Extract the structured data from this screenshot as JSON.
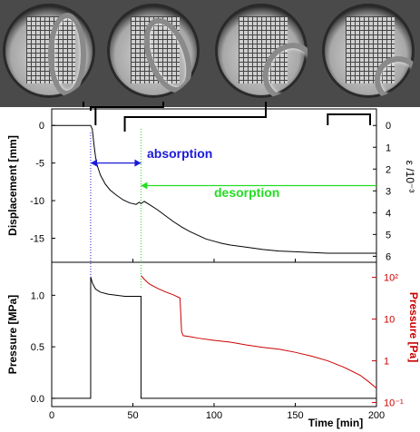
{
  "chart_data": [
    {
      "type": "line",
      "panel": "top",
      "ylabel": "Displacement [mm]",
      "ylabel2": "ε /10⁻³",
      "ylim": [
        -18.2,
        2.2
      ],
      "yticks": [
        0,
        -5,
        -10,
        -15
      ],
      "y2ticks": [
        "0",
        "1",
        "2",
        "3",
        "4",
        "5",
        "6"
      ],
      "xlim": [
        0,
        200
      ],
      "series": [
        {
          "color": "#000000",
          "x": [
            0,
            24,
            25,
            26,
            27,
            28,
            30,
            33,
            36,
            40,
            44,
            48,
            52,
            54,
            55,
            57,
            60,
            65,
            70,
            75,
            80,
            85,
            90,
            95,
            100,
            105,
            110,
            120,
            130,
            140,
            150,
            160,
            170,
            180,
            190,
            200
          ],
          "y": [
            0,
            0,
            -0.5,
            -2.5,
            -4.2,
            -5.3,
            -6.6,
            -7.8,
            -8.6,
            -9.3,
            -9.9,
            -10.3,
            -10.5,
            -10.2,
            -10.4,
            -10.1,
            -10.5,
            -11.2,
            -12.0,
            -12.8,
            -13.5,
            -14.1,
            -14.6,
            -15.1,
            -15.4,
            -15.7,
            -15.9,
            -16.2,
            -16.5,
            -16.7,
            -16.8,
            -16.9,
            -17.0,
            -17.0,
            -17.0,
            -17.0
          ]
        }
      ],
      "annotations": [
        {
          "text": "absorption",
          "color": "#1a1ad8",
          "x_from": 24,
          "x_to": 55,
          "y": -5.0
        },
        {
          "text": "desorption",
          "color": "#22dd22",
          "x_from": 200,
          "x_to": 55,
          "y": -8.0
        }
      ]
    },
    {
      "type": "line",
      "panel": "bottom",
      "xlabel": "Time [min]",
      "ylabel": "Pressure [MPa]",
      "ylabel2": "Pressure [Pa]",
      "ylim": [
        -0.08,
        1.32
      ],
      "yticks": [
        0.0,
        0.5,
        1.0
      ],
      "y2scale": "log",
      "y2ticks": [
        "10⁻¹",
        "1",
        "10",
        "10²"
      ],
      "xlim": [
        0,
        200
      ],
      "xticks": [
        0,
        50,
        100,
        150,
        200
      ],
      "series": [
        {
          "color": "#000000",
          "x": [
            0,
            24,
            24,
            25,
            27,
            30,
            35,
            40,
            45,
            50,
            54,
            55,
            55,
            56,
            200
          ],
          "y": [
            0,
            0,
            1.18,
            1.12,
            1.06,
            1.03,
            1.01,
            1.0,
            0.99,
            0.99,
            0.99,
            0.99,
            0,
            0,
            0
          ]
        },
        {
          "color": "#cc0000",
          "x": [
            55,
            56,
            57,
            60,
            65,
            70,
            75,
            79,
            80,
            81,
            85,
            90,
            100,
            110,
            120,
            130,
            140,
            150,
            160,
            170,
            180,
            190,
            195,
            200
          ],
          "y": [
            110,
            100,
            90,
            70,
            55,
            45,
            38,
            32,
            5.0,
            4.0,
            3.8,
            3.5,
            3.1,
            2.8,
            2.4,
            2.1,
            1.9,
            1.6,
            1.3,
            1.0,
            0.7,
            0.45,
            0.32,
            0.22
          ]
        }
      ]
    }
  ],
  "icons": {
    "photos": [
      "specimen-photo-1",
      "specimen-photo-2",
      "specimen-photo-3",
      "specimen-photo-4"
    ]
  }
}
